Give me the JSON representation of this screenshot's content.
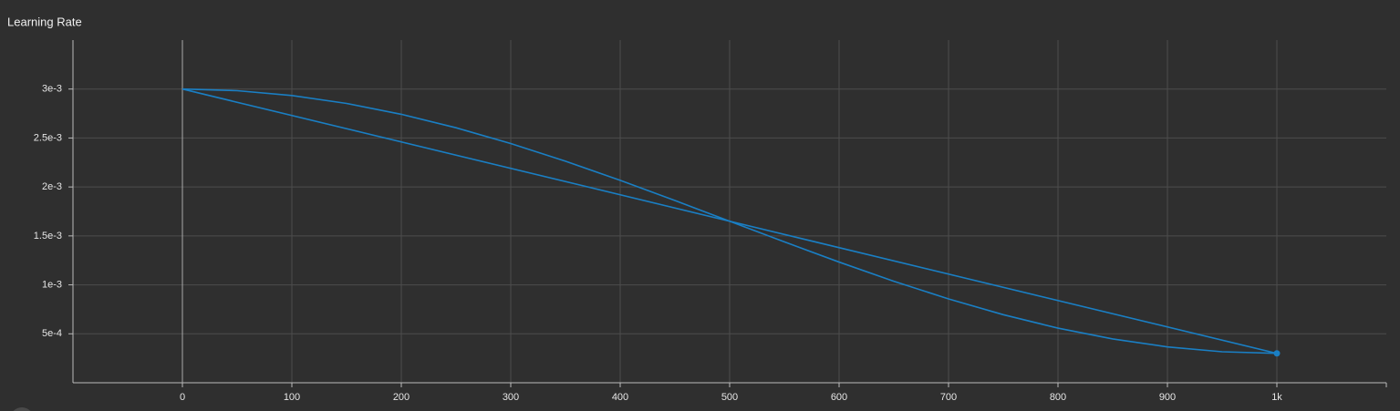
{
  "chart_data": {
    "type": "line",
    "title": "Learning Rate",
    "xlim": [
      -100,
      1100
    ],
    "xticks": [
      0,
      100,
      200,
      300,
      400,
      500,
      600,
      700,
      800,
      900,
      {
        "value": 1000,
        "label": "1k"
      }
    ],
    "ylim": [
      0,
      0.0035
    ],
    "yticks": [
      {
        "value": 0.0005,
        "label": "5e-4"
      },
      {
        "value": 0.001,
        "label": "1e-3"
      },
      {
        "value": 0.0015,
        "label": "1.5e-3"
      },
      {
        "value": 0.002,
        "label": "2e-3"
      },
      {
        "value": 0.0025,
        "label": "2.5e-3"
      },
      {
        "value": 0.003,
        "label": "3e-3"
      }
    ],
    "grid": true,
    "series": [
      {
        "color": "#1a7fc4",
        "x": [
          0,
          50,
          100,
          150,
          200,
          250,
          300,
          350,
          400,
          450,
          500,
          550,
          600,
          650,
          700,
          750,
          800,
          850,
          900,
          950,
          1000
        ],
        "values": [
          0.003,
          0.0029834,
          0.0029339,
          0.0028529,
          0.0027422,
          0.0026046,
          0.0024435,
          0.0022629,
          0.0020672,
          0.0018612,
          0.00165,
          0.0014388,
          0.0012328,
          0.0010371,
          0.0008565,
          0.0006954,
          0.0005578,
          0.0004471,
          0.0003661,
          0.0003166,
          0.0003
        ]
      },
      {
        "color": "#1a7fc4",
        "x": [
          0,
          1000
        ],
        "values": [
          0.003,
          0.0003
        ]
      }
    ]
  }
}
